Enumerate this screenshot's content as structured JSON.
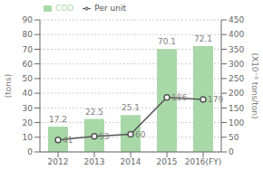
{
  "chart_data": {
    "type": "bar",
    "categories": [
      "2012",
      "2013",
      "2014",
      "2015",
      "2016(FY)"
    ],
    "series": [
      {
        "name": "COD",
        "type": "bar",
        "color": "#a8d8a8",
        "values": [
          17.2,
          22.5,
          25.1,
          70.1,
          72.1
        ]
      },
      {
        "name": "Per unit",
        "type": "line",
        "axis": "y2",
        "color": "#555555",
        "marker": "circle",
        "values": [
          41,
          53,
          60,
          186,
          179
        ]
      }
    ],
    "y_label": "(tons)",
    "y2_label": "(X10⁻⁶ tons/ton)",
    "ylim": [
      0,
      90
    ],
    "yticks": [
      0,
      10,
      20,
      30,
      40,
      50,
      60,
      70,
      80,
      90
    ],
    "y2lim": [
      0,
      450
    ],
    "y2ticks": [
      0,
      50,
      100,
      150,
      200,
      250,
      300,
      350,
      400,
      450
    ],
    "grid": true,
    "legend": "upper left",
    "data_labels": true
  }
}
